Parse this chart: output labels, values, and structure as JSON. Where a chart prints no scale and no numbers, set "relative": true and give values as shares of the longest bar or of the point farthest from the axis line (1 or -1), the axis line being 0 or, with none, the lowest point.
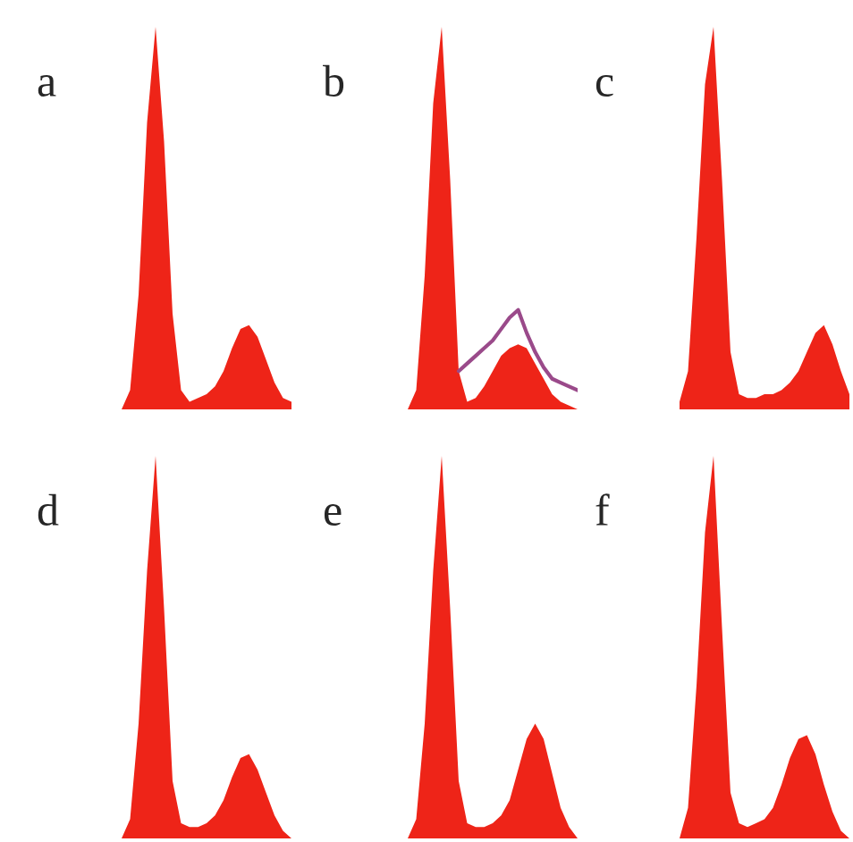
{
  "chart_data": [
    {
      "type": "area",
      "title": "a",
      "relative": true,
      "categories": [
        null,
        null,
        null,
        null,
        null,
        null,
        null,
        null,
        null,
        null,
        null,
        null,
        null,
        null,
        null,
        null,
        null,
        null,
        null,
        null,
        null
      ],
      "series": [
        {
          "color": "#ee2418",
          "values": [
            0,
            0.05,
            0.3,
            0.75,
            1,
            0.7,
            0.25,
            0.05,
            0.02,
            0.03,
            0.04,
            0.06,
            0.1,
            0.16,
            0.21,
            0.22,
            0.19,
            0.13,
            0.07,
            0.03,
            0.02
          ]
        }
      ]
    },
    {
      "type": "area",
      "title": "b",
      "relative": true,
      "categories": [
        null,
        null,
        null,
        null,
        null,
        null,
        null,
        null,
        null,
        null,
        null,
        null,
        null,
        null,
        null,
        null,
        null,
        null,
        null,
        null,
        null
      ],
      "series": [
        {
          "color": "#ee2418",
          "values": [
            0,
            0.05,
            0.35,
            0.8,
            1,
            0.6,
            0.1,
            0.02,
            0.03,
            0.06,
            0.1,
            0.14,
            0.16,
            0.17,
            0.16,
            0.12,
            0.08,
            0.04,
            0.02,
            0.01,
            0
          ]
        },
        {
          "type": "line",
          "color": "#9a4a8a",
          "values": [
            null,
            null,
            null,
            null,
            null,
            null,
            0.1,
            0.12,
            0.14,
            0.16,
            0.18,
            0.21,
            0.24,
            0.26,
            0.2,
            0.15,
            0.11,
            0.08,
            0.07,
            0.06,
            0.05
          ]
        }
      ]
    },
    {
      "type": "area",
      "title": "c",
      "relative": true,
      "categories": [
        null,
        null,
        null,
        null,
        null,
        null,
        null,
        null,
        null,
        null,
        null,
        null,
        null,
        null,
        null,
        null,
        null,
        null,
        null,
        null,
        null
      ],
      "series": [
        {
          "color": "#ee2418",
          "values": [
            0.02,
            0.1,
            0.45,
            0.85,
            1,
            0.6,
            0.15,
            0.04,
            0.03,
            0.03,
            0.04,
            0.04,
            0.05,
            0.07,
            0.1,
            0.15,
            0.2,
            0.22,
            0.17,
            0.1,
            0.04
          ]
        }
      ]
    },
    {
      "type": "area",
      "title": "d",
      "relative": true,
      "categories": [
        null,
        null,
        null,
        null,
        null,
        null,
        null,
        null,
        null,
        null,
        null,
        null,
        null,
        null,
        null,
        null,
        null,
        null,
        null,
        null,
        null
      ],
      "series": [
        {
          "color": "#ee2418",
          "values": [
            0,
            0.05,
            0.3,
            0.7,
            1,
            0.6,
            0.15,
            0.04,
            0.03,
            0.03,
            0.04,
            0.06,
            0.1,
            0.16,
            0.21,
            0.22,
            0.18,
            0.12,
            0.06,
            0.02,
            0
          ]
        }
      ]
    },
    {
      "type": "area",
      "title": "e",
      "relative": true,
      "categories": [
        null,
        null,
        null,
        null,
        null,
        null,
        null,
        null,
        null,
        null,
        null,
        null,
        null,
        null,
        null,
        null,
        null,
        null,
        null,
        null,
        null
      ],
      "series": [
        {
          "color": "#ee2418",
          "values": [
            0,
            0.05,
            0.3,
            0.7,
            1,
            0.6,
            0.15,
            0.04,
            0.03,
            0.03,
            0.04,
            0.06,
            0.1,
            0.18,
            0.26,
            0.3,
            0.26,
            0.17,
            0.08,
            0.03,
            0
          ]
        }
      ]
    },
    {
      "type": "area",
      "title": "f",
      "relative": true,
      "categories": [
        null,
        null,
        null,
        null,
        null,
        null,
        null,
        null,
        null,
        null,
        null,
        null,
        null,
        null,
        null,
        null,
        null,
        null,
        null,
        null,
        null
      ],
      "series": [
        {
          "color": "#ee2418",
          "values": [
            0,
            0.08,
            0.4,
            0.8,
            1,
            0.55,
            0.12,
            0.04,
            0.03,
            0.04,
            0.05,
            0.08,
            0.14,
            0.21,
            0.26,
            0.27,
            0.22,
            0.14,
            0.07,
            0.02,
            0
          ]
        }
      ]
    }
  ]
}
